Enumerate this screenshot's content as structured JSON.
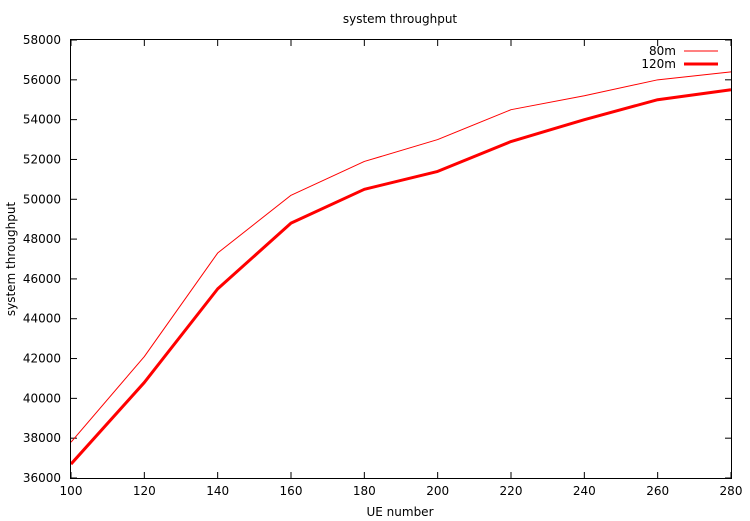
{
  "chart_data": {
    "type": "line",
    "title": "system throughput",
    "xlabel": "UE number",
    "ylabel": "system throughput",
    "x": [
      100,
      120,
      140,
      160,
      180,
      200,
      220,
      240,
      260,
      280
    ],
    "xlim": [
      100,
      280
    ],
    "ylim": [
      36000,
      58000
    ],
    "xticks": [
      100,
      120,
      140,
      160,
      180,
      200,
      220,
      240,
      260,
      280
    ],
    "yticks": [
      36000,
      38000,
      40000,
      42000,
      44000,
      46000,
      48000,
      50000,
      52000,
      54000,
      56000,
      58000
    ],
    "grid": false,
    "legend_position": "top-right",
    "series": [
      {
        "name": "80m",
        "color": "#ff0000",
        "values": [
          37800,
          42100,
          47300,
          50200,
          51900,
          53000,
          54500,
          55200,
          56000,
          56400
        ]
      },
      {
        "name": "120m",
        "color": "#ff0000",
        "values": [
          36700,
          40800,
          45500,
          48800,
          50500,
          51400,
          52900,
          54000,
          55000,
          55500
        ]
      }
    ]
  }
}
